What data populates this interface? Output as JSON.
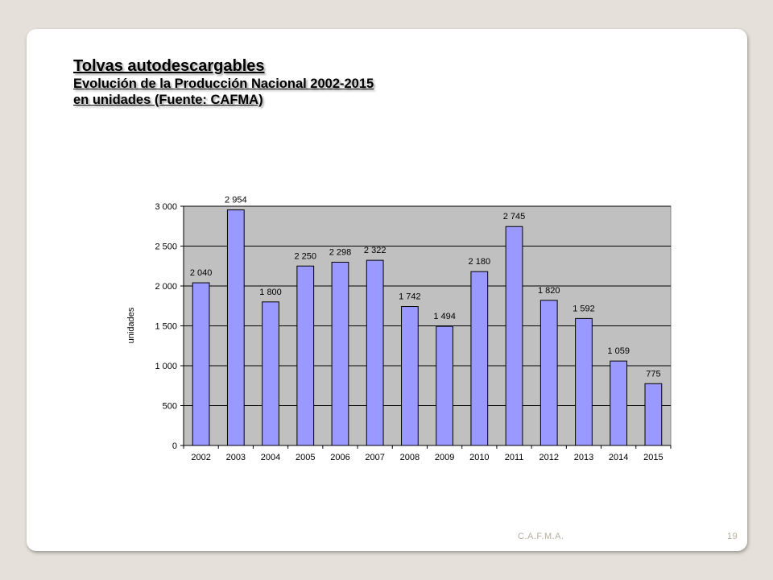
{
  "title": "Tolvas autodescargables",
  "subtitle_1": "Evolución de la Producción Nacional 2002-2015",
  "subtitle_2": "en unidades (Fuente: CAFMA)",
  "footer": {
    "label": "C.A.F.M.A.",
    "page": "19"
  },
  "colors": {
    "bar_fill": "#9999ff",
    "plot_bg": "#c0c0c0",
    "gridline": "#000000"
  },
  "chart_data": {
    "type": "bar",
    "categories": [
      "2002",
      "2003",
      "2004",
      "2005",
      "2006",
      "2007",
      "2008",
      "2009",
      "2010",
      "2011",
      "2012",
      "2013",
      "2014",
      "2015"
    ],
    "values": [
      2040,
      2954,
      1800,
      2250,
      2298,
      2322,
      1742,
      1494,
      2180,
      2745,
      1820,
      1592,
      1059,
      775
    ],
    "value_labels": [
      "2 040",
      "2 954",
      "1 800",
      "2 250",
      "2 298",
      "2 322",
      "1 742",
      "1 494",
      "2 180",
      "2 745",
      "1 820",
      "1 592",
      "1 059",
      "775"
    ],
    "ylabel": "unidades",
    "xlabel": "",
    "ylim": [
      0,
      3000
    ],
    "yticks": [
      0,
      500,
      1000,
      1500,
      2000,
      2500,
      3000
    ],
    "ytick_labels": [
      "0",
      "500",
      "1 000",
      "1 500",
      "2 000",
      "2 500",
      "3 000"
    ],
    "grid": true,
    "legend": "none"
  }
}
